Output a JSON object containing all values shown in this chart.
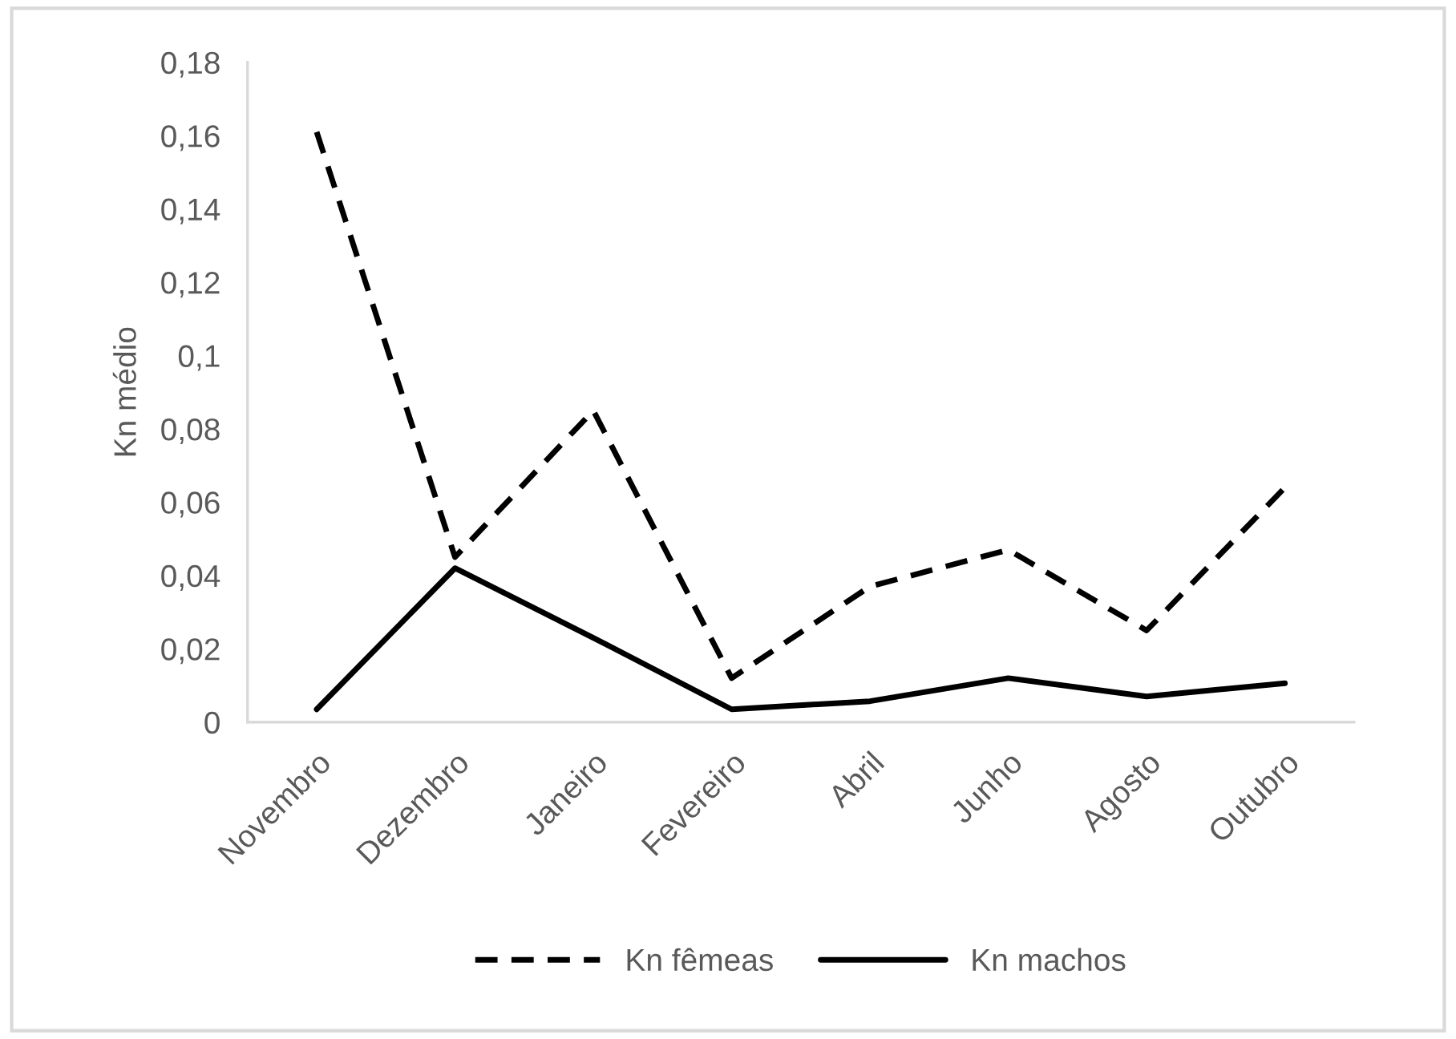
{
  "chart_data": {
    "type": "line",
    "ylabel": "Kn médio",
    "categories": [
      "Novembro",
      "Dezembro",
      "Janeiro",
      "Fevereiro",
      "Abril",
      "Junho",
      "Agosto",
      "Outubro"
    ],
    "series": [
      {
        "name": "Kn fêmeas",
        "color": "#000000",
        "line_style": "dashed",
        "values": [
          0.161,
          0.045,
          0.085,
          0.012,
          0.037,
          0.047,
          0.025,
          0.064
        ]
      },
      {
        "name": "Kn machos",
        "color": "#000000",
        "line_style": "solid",
        "values": [
          0.0035,
          0.042,
          0.023,
          0.0035,
          0.0057,
          0.012,
          0.007,
          0.0106
        ]
      }
    ],
    "ylim": [
      0,
      0.18
    ],
    "yticks": [
      {
        "value": 0,
        "label": "0"
      },
      {
        "value": 0.02,
        "label": "0,02"
      },
      {
        "value": 0.04,
        "label": "0,04"
      },
      {
        "value": 0.06,
        "label": "0,06"
      },
      {
        "value": 0.08,
        "label": "0,08"
      },
      {
        "value": 0.1,
        "label": "0,1"
      },
      {
        "value": 0.12,
        "label": "0,12"
      },
      {
        "value": 0.14,
        "label": "0,14"
      },
      {
        "value": 0.16,
        "label": "0,16"
      },
      {
        "value": 0.18,
        "label": "0,18"
      }
    ],
    "grid": false,
    "legend": "bottom",
    "marker": "none"
  }
}
